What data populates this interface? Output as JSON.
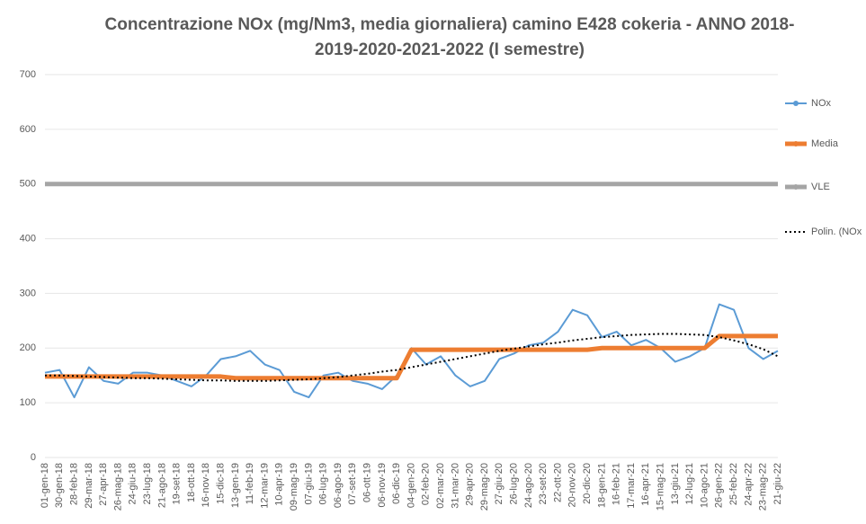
{
  "chart_data": {
    "type": "line",
    "title": "Concentrazione NOx (mg/Nm3, media giornaliera) camino E428 cokeria - ANNO 2018-2019-2020-2021-2022 (I semestre)",
    "categories": [
      "01-gen-18",
      "30-gen-18",
      "28-feb-18",
      "29-mar-18",
      "27-apr-18",
      "26-mag-18",
      "24-giu-18",
      "23-lug-18",
      "21-ago-18",
      "19-set-18",
      "18-ott-18",
      "16-nov-18",
      "15-dic-18",
      "13-gen-19",
      "11-feb-19",
      "12-mar-19",
      "10-apr-19",
      "09-mag-19",
      "07-giu-19",
      "06-lug-19",
      "06-ago-19",
      "07-set-19",
      "06-ott-19",
      "06-nov-19",
      "06-dic-19",
      "04-gen-20",
      "02-feb-20",
      "02-mar-20",
      "31-mar-20",
      "29-apr-20",
      "29-mag-20",
      "27-giu-20",
      "26-lug-20",
      "24-ago-20",
      "23-set-20",
      "22-ott-20",
      "20-nov-20",
      "20-dic-20",
      "18-gen-21",
      "16-feb-21",
      "17-mar-21",
      "16-apr-21",
      "15-mag-21",
      "13-giu-21",
      "12-lug-21",
      "10-ago-21",
      "26-gen-22",
      "25-feb-22",
      "24-apr-22",
      "23-mag-22",
      "21-giu-22"
    ],
    "series": [
      {
        "name": "NOx",
        "color": "#5b9bd5",
        "width": 2,
        "dash": "none",
        "values": [
          155,
          160,
          110,
          165,
          140,
          135,
          155,
          155,
          150,
          140,
          130,
          150,
          180,
          185,
          195,
          170,
          160,
          120,
          110,
          150,
          155,
          140,
          135,
          125,
          150,
          200,
          170,
          185,
          150,
          130,
          140,
          180,
          190,
          205,
          210,
          230,
          270,
          260,
          220,
          230,
          205,
          215,
          200,
          175,
          185,
          200,
          280,
          270,
          200,
          180,
          195
        ]
      },
      {
        "name": "Media",
        "color": "#ed7d31",
        "width": 5,
        "dash": "none",
        "values": [
          148,
          148,
          148,
          148,
          148,
          148,
          148,
          148,
          148,
          148,
          148,
          148,
          148,
          145,
          145,
          145,
          145,
          145,
          145,
          145,
          145,
          145,
          145,
          145,
          145,
          197,
          197,
          197,
          197,
          197,
          197,
          197,
          197,
          197,
          197,
          197,
          197,
          197,
          200,
          200,
          200,
          200,
          200,
          200,
          200,
          200,
          222,
          222,
          222,
          222,
          222
        ]
      },
      {
        "name": "VLE",
        "color": "#a5a5a5",
        "width": 5,
        "dash": "none",
        "values": [
          500,
          500,
          500,
          500,
          500,
          500,
          500,
          500,
          500,
          500,
          500,
          500,
          500,
          500,
          500,
          500,
          500,
          500,
          500,
          500,
          500,
          500,
          500,
          500,
          500,
          500,
          500,
          500,
          500,
          500,
          500,
          500,
          500,
          500,
          500,
          500,
          500,
          500,
          500,
          500,
          500,
          500,
          500,
          500,
          500,
          500,
          500,
          500,
          500,
          500,
          500
        ]
      },
      {
        "name": "Polin. (NOx",
        "color": "#000000",
        "width": 2,
        "dash": "2 3",
        "values": [
          150,
          150,
          149,
          148,
          147,
          146,
          145,
          145,
          144,
          143,
          142,
          141,
          141,
          140,
          140,
          140,
          141,
          142,
          143,
          145,
          147,
          150,
          153,
          157,
          160,
          165,
          170,
          175,
          180,
          185,
          190,
          195,
          199,
          203,
          207,
          210,
          214,
          217,
          220,
          222,
          224,
          225,
          226,
          226,
          225,
          224,
          220,
          214,
          207,
          198,
          185
        ]
      }
    ],
    "ylim": [
      0,
      700
    ],
    "yticks": [
      0,
      100,
      200,
      300,
      400,
      500,
      600,
      700
    ],
    "grid": true,
    "legend": "right"
  }
}
